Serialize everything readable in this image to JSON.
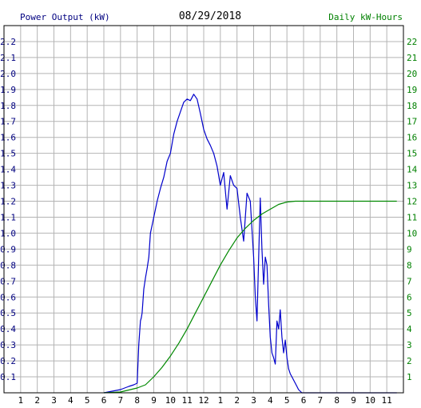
{
  "chart_data": {
    "type": "line",
    "title": "08/29/2018",
    "ylabel_left": "Power Output (kW)",
    "ylabel_right": "Daily kW-Hours",
    "x_ticks": [
      "1",
      "2",
      "3",
      "4",
      "5",
      "6",
      "7",
      "8",
      "9",
      "10",
      "11",
      "12",
      "1",
      "2",
      "3",
      "4",
      "5",
      "6",
      "7",
      "8",
      "9",
      "10",
      "11"
    ],
    "y_left_ticks": [
      "0.1",
      "0.2",
      "0.3",
      "0.4",
      "0.5",
      "0.6",
      "0.7",
      "0.8",
      "0.9",
      "1.0",
      "1.1",
      "1.2",
      "1.3",
      "1.4",
      "1.5",
      "1.6",
      "1.7",
      "1.8",
      "1.9",
      "2.0",
      "2.1",
      "2.2"
    ],
    "y_right_ticks": [
      "1",
      "2",
      "3",
      "4",
      "5",
      "6",
      "7",
      "8",
      "9",
      "10",
      "11",
      "12",
      "13",
      "14",
      "15",
      "16",
      "17",
      "18",
      "19",
      "20",
      "21",
      "22"
    ],
    "xlim": [
      0,
      24
    ],
    "ylim_left": [
      0,
      2.3
    ],
    "ylim_right": [
      0,
      23
    ],
    "grid": true,
    "colors": {
      "power": "#0000cc",
      "energy": "#008800",
      "left_axis": "#000080",
      "right_axis": "#008000",
      "grid": "#b4b4b4"
    },
    "series": [
      {
        "axis": "left",
        "x": [
          6.0,
          6.5,
          7.0,
          7.5,
          7.8,
          8.0,
          8.1,
          8.2,
          8.25,
          8.3,
          8.4,
          8.5,
          8.6,
          8.7,
          8.8,
          8.9,
          9.0,
          9.2,
          9.4,
          9.6,
          9.8,
          10.0,
          10.2,
          10.4,
          10.6,
          10.8,
          11.0,
          11.2,
          11.4,
          11.6,
          11.8,
          12.0,
          12.2,
          12.4,
          12.6,
          12.8,
          13.0,
          13.2,
          13.4,
          13.6,
          13.8,
          14.0,
          14.2,
          14.4,
          14.6,
          14.8,
          15.0,
          15.1,
          15.2,
          15.3,
          15.4,
          15.5,
          15.6,
          15.7,
          15.8,
          15.9,
          16.0,
          16.1,
          16.2,
          16.3,
          16.4,
          16.5,
          16.6,
          16.7,
          16.8,
          16.9,
          17.0,
          17.1,
          17.2,
          17.3,
          17.4,
          17.5,
          17.6,
          17.7,
          17.8,
          17.9,
          18.0,
          18.1,
          18.2,
          18.3,
          18.4,
          18.5,
          18.6,
          18.7,
          18.8,
          18.9,
          19.0,
          19.2,
          19.4,
          19.6,
          19.8,
          20.0,
          23.6
        ],
        "y": [
          0.0,
          0.01,
          0.02,
          0.04,
          0.05,
          0.06,
          0.3,
          0.45,
          0.47,
          0.5,
          0.65,
          0.72,
          0.78,
          0.85,
          1.0,
          1.05,
          1.1,
          1.2,
          1.28,
          1.35,
          1.45,
          1.5,
          1.62,
          1.7,
          1.76,
          1.82,
          1.84,
          1.83,
          1.87,
          1.84,
          1.75,
          1.65,
          1.59,
          1.55,
          1.5,
          1.42,
          1.3,
          1.38,
          1.15,
          1.36,
          1.3,
          1.28,
          1.1,
          0.95,
          1.25,
          1.2,
          0.85,
          0.6,
          0.45,
          0.85,
          1.22,
          0.9,
          0.68,
          0.85,
          0.8,
          0.55,
          0.35,
          0.25,
          0.22,
          0.18,
          0.45,
          0.4,
          0.52,
          0.35,
          0.25,
          0.33,
          0.22,
          0.15,
          0.12,
          0.1,
          0.08,
          0.06,
          0.04,
          0.02,
          0.01,
          0.0,
          0.0,
          0.0,
          0.0,
          0.0,
          0.0,
          0.0,
          0.0,
          0.0,
          0.0,
          0.0,
          0.0,
          0.0,
          0.0,
          0.0,
          0.0,
          0.0,
          0.0
        ]
      },
      {
        "axis": "right",
        "x": [
          6.0,
          7.0,
          8.0,
          8.5,
          9.0,
          9.5,
          10.0,
          10.5,
          11.0,
          11.5,
          12.0,
          12.5,
          13.0,
          13.5,
          14.0,
          14.5,
          15.0,
          15.5,
          16.0,
          16.5,
          17.0,
          17.5,
          18.0,
          19.0,
          23.6
        ],
        "y": [
          0.0,
          0.05,
          0.3,
          0.5,
          1.0,
          1.6,
          2.3,
          3.1,
          4.0,
          5.0,
          6.0,
          7.0,
          8.0,
          8.9,
          9.7,
          10.3,
          10.8,
          11.2,
          11.5,
          11.8,
          11.95,
          12.0,
          12.0,
          12.0,
          12.0
        ]
      }
    ]
  }
}
